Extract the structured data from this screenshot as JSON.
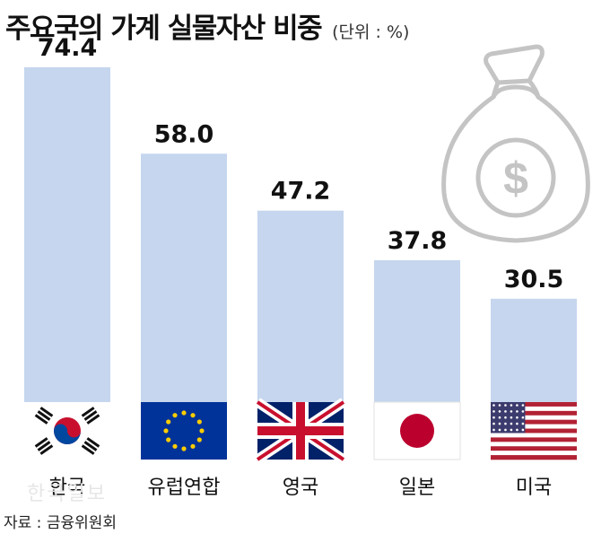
{
  "header": {
    "title": "주요국의 가계 실물자산 비중",
    "unit": "(단위 : %)"
  },
  "chart_data": {
    "type": "bar",
    "title": "주요국의 가계 실물자산 비중",
    "categories": [
      "한국",
      "유럽연합",
      "영국",
      "일본",
      "미국"
    ],
    "values": [
      74.4,
      58.0,
      47.2,
      37.8,
      30.5
    ],
    "value_labels": [
      "74.4",
      "58.0",
      "47.2",
      "37.8",
      "30.5"
    ],
    "flags": [
      "korea",
      "eu",
      "uk",
      "japan",
      "usa"
    ],
    "bar_color": "#c5d6ee",
    "ylim": [
      0,
      80
    ]
  },
  "icon": "money-bag-icon",
  "footer": {
    "source": "자료 : 금융위원회",
    "watermark": "한국일보"
  }
}
